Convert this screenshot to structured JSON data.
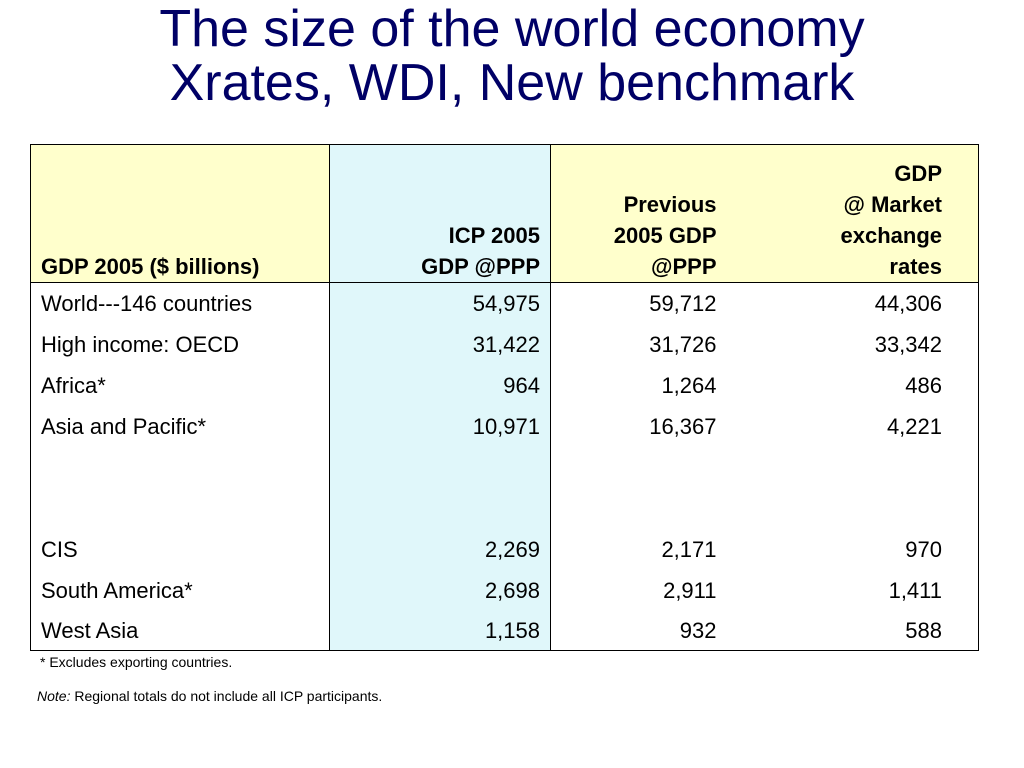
{
  "title": {
    "line1": "The size of the world economy",
    "line2": "Xrates, WDI, New benchmark"
  },
  "table": {
    "headers": [
      [
        "GDP 2005 ($ billions)"
      ],
      [
        "ICP 2005",
        "GDP @PPP"
      ],
      [
        "Previous",
        "2005 GDP",
        "@PPP"
      ],
      [
        "GDP",
        "@ Market",
        "exchange",
        "rates"
      ]
    ],
    "rows": [
      {
        "region": "World---146 countries",
        "icp": "54,975",
        "previous": "59,712",
        "market": "44,306"
      },
      {
        "region": "High income: OECD",
        "icp": "31,422",
        "previous": "31,726",
        "market": "33,342"
      },
      {
        "region": "Africa*",
        "icp": "964",
        "previous": "1,264",
        "market": "486"
      },
      {
        "region": "Asia and Pacific*",
        "icp": "10,971",
        "previous": "16,367",
        "market": "4,221"
      },
      {
        "region": "CIS",
        "icp": "2,269",
        "previous": "2,171",
        "market": "970"
      },
      {
        "region": "South America*",
        "icp": "2,698",
        "previous": "2,911",
        "market": "1,411"
      },
      {
        "region": "West Asia",
        "icp": "1,158",
        "previous": "932",
        "market": "588"
      }
    ]
  },
  "footnote": "* Excludes exporting countries.",
  "note": {
    "label": "Note:",
    "text": " Regional totals do not include all ICP participants."
  },
  "colors": {
    "title": "#000066",
    "header_fill": "#ffffcc",
    "icp_column_fill": "#e0f7fa"
  }
}
